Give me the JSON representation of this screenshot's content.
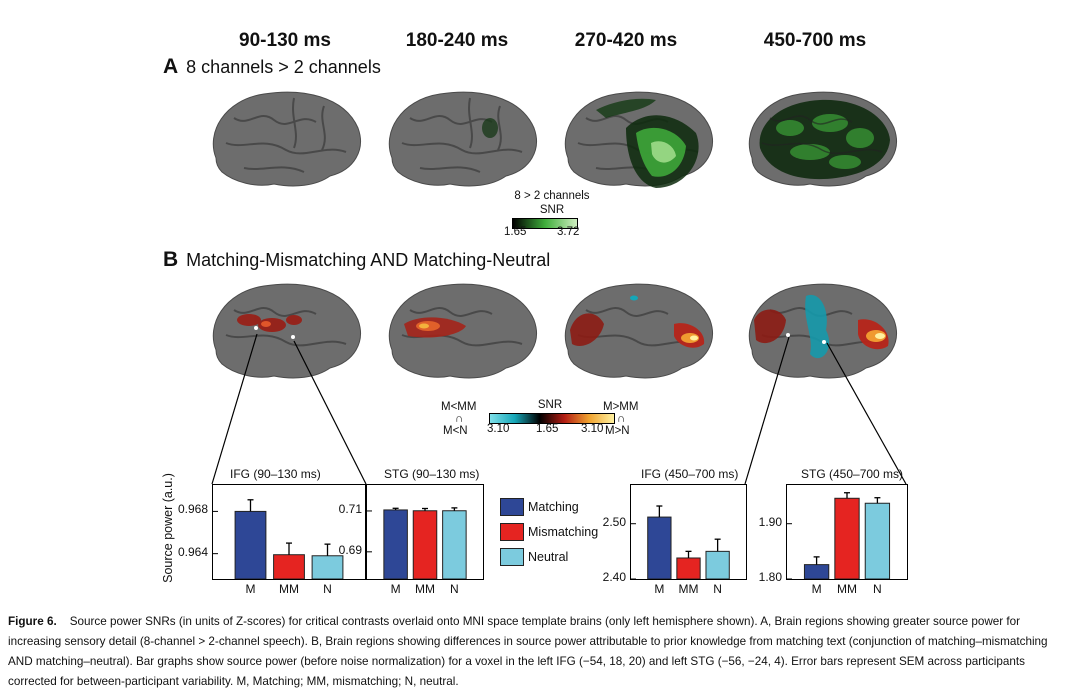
{
  "time_windows": [
    "90-130 ms",
    "180-240 ms",
    "270-420 ms",
    "450-700 ms"
  ],
  "panel_a": {
    "letter": "A",
    "title": "8 channels > 2 channels",
    "colorbar": {
      "title_line1": "8 > 2 channels",
      "title_line2": "SNR",
      "min": "1.65",
      "max": "3.72",
      "colors": [
        "#000000",
        "#3fae3b",
        "#cfeec0"
      ]
    }
  },
  "panel_b": {
    "letter": "B",
    "title": "Matching-Mismatching AND Matching-Neutral",
    "colorbar": {
      "left_top": "M<MM",
      "left_mid": "∩",
      "left_bottom": "M<N",
      "right_top": "M>MM",
      "right_mid": "∩",
      "right_bottom": "M>N",
      "title": "SNR",
      "tick_left": "3.10",
      "tick_mid": "1.65",
      "tick_right": "3.10",
      "colors": [
        "#7fe0ea",
        "#16a7b8",
        "#000000",
        "#b31d14",
        "#f0a330",
        "#fff1a0"
      ]
    }
  },
  "y_axis_label": "Source power (a.u.)",
  "legend": [
    {
      "label": "Matching",
      "color": "#2e4796"
    },
    {
      "label": "Mismatching",
      "color": "#e52421"
    },
    {
      "label": "Neutral",
      "color": "#7ccbde"
    }
  ],
  "chart_data": [
    {
      "type": "bar",
      "title": "IFG (90–130 ms)",
      "categories": [
        "M",
        "MM",
        "N"
      ],
      "values": [
        0.968,
        0.9639,
        0.9638
      ],
      "errors": [
        0.0011,
        0.0011,
        0.0011
      ],
      "ylim": [
        0.9616,
        0.9705
      ],
      "yticks": [
        0.964,
        0.968
      ],
      "ytick_labels": [
        "0.964",
        "0.968"
      ]
    },
    {
      "type": "bar",
      "title": "STG (90–130 ms)",
      "categories": [
        "M",
        "MM",
        "N"
      ],
      "values": [
        0.7105,
        0.7101,
        0.7101
      ],
      "errors": [
        0.0008,
        0.0011,
        0.0014
      ],
      "ylim": [
        0.6767,
        0.7227
      ],
      "yticks": [
        0.69,
        0.71
      ],
      "ytick_labels": [
        "0.69",
        "0.71"
      ]
    },
    {
      "type": "bar",
      "title": "IFG (450–700 ms)",
      "categories": [
        "M",
        "MM",
        "N"
      ],
      "values": [
        2.512,
        2.438,
        2.45
      ],
      "errors": [
        0.02,
        0.012,
        0.022
      ],
      "ylim": [
        2.4,
        2.57
      ],
      "yticks": [
        2.4,
        2.5
      ],
      "ytick_labels": [
        "2.40",
        "2.50"
      ]
    },
    {
      "type": "bar",
      "title": "STG (450–700 ms)",
      "categories": [
        "M",
        "MM",
        "N"
      ],
      "values": [
        1.826,
        1.946,
        1.937
      ],
      "errors": [
        0.014,
        0.01,
        0.01
      ],
      "ylim": [
        1.8,
        1.97
      ],
      "yticks": [
        1.8,
        1.9
      ],
      "ytick_labels": [
        "1.80",
        "1.90"
      ]
    }
  ],
  "caption": {
    "figure_label": "Figure 6.",
    "text": "Source power SNRs (in units of Z-scores) for critical contrasts overlaid onto MNI space template brains (only left hemisphere shown). A, Brain regions showing greater source power for increasing sensory detail (8-channel > 2-channel speech). B, Brain regions showing differences in source power attributable to prior knowledge from matching text (conjunction of matching–mismatching AND matching–neutral). Bar graphs show source power (before noise normalization) for a voxel in the left IFG (−54, 18, 20) and left STG (−56, −24, 4). Error bars represent SEM across participants corrected for between-participant variability. M, Matching; MM, mismatching; N, neutral."
  }
}
